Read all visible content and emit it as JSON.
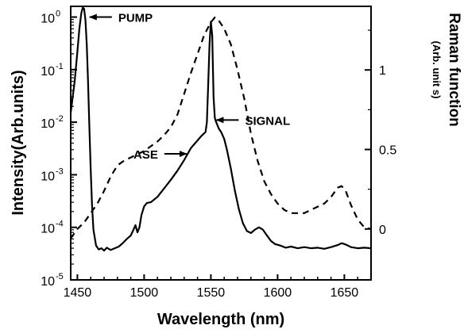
{
  "chart_data": {
    "type": "line",
    "xlabel": "Wavelength (nm)",
    "ylabel_left": "Intensity(Arb.units)",
    "ylabel_right": "Raman function",
    "ylabel_right_sub": "(Arb. unit s)",
    "xlim": [
      1445,
      1670
    ],
    "ylim_left": [
      1e-05,
      1.6
    ],
    "yscale_left": "log",
    "ylim_right": [
      -0.32,
      1.4
    ],
    "grid": false,
    "x_ticks": [
      1450,
      1500,
      1550,
      1600,
      1650
    ],
    "x_tick_labels": [
      "1450",
      "1500",
      "1550",
      "1600",
      "1650"
    ],
    "y_left_ticks": [
      1e-05,
      0.0001,
      0.001,
      0.01,
      0.1,
      1
    ],
    "y_left_tick_mantissa": "10",
    "y_left_tick_exponents": [
      "-5",
      "-4",
      "-3",
      "-2",
      "-1",
      "0"
    ],
    "y_right_ticks": [
      0,
      0.5,
      1
    ],
    "y_right_tick_labels": [
      "0",
      "0.5",
      "1"
    ],
    "series": [
      {
        "axis": "left",
        "style": "solid",
        "x": [
          1445,
          1448,
          1450,
          1451.5,
          1453,
          1454,
          1455,
          1456,
          1457,
          1458,
          1459,
          1460,
          1461,
          1462,
          1464,
          1466,
          1468,
          1470,
          1472,
          1475,
          1478,
          1481,
          1484,
          1487,
          1490,
          1492,
          1493.5,
          1495,
          1496.5,
          1498,
          1500,
          1502,
          1505,
          1510,
          1515,
          1520,
          1525,
          1530,
          1535,
          1540,
          1543,
          1546,
          1547,
          1548,
          1549,
          1550,
          1551,
          1552,
          1553,
          1554,
          1556,
          1558,
          1560,
          1562,
          1565,
          1568,
          1571,
          1574,
          1577,
          1580,
          1583,
          1586,
          1589,
          1592,
          1595,
          1598,
          1602,
          1606,
          1610,
          1615,
          1620,
          1625,
          1630,
          1635,
          1640,
          1645,
          1648,
          1651,
          1655,
          1660,
          1665,
          1670
        ],
        "y": [
          0.015,
          0.06,
          0.22,
          0.6,
          1.2,
          1.5,
          1.45,
          0.9,
          0.3,
          0.06,
          0.008,
          0.0012,
          0.00025,
          9e-05,
          4.5e-05,
          3.8e-05,
          4e-05,
          3.6e-05,
          4.1e-05,
          3.7e-05,
          4e-05,
          4.3e-05,
          5e-05,
          6e-05,
          7e-05,
          9e-05,
          0.00011,
          8e-05,
          0.0001,
          0.00017,
          0.00025,
          0.00029,
          0.0003,
          0.00038,
          0.00055,
          0.0008,
          0.0012,
          0.0019,
          0.0032,
          0.0045,
          0.0055,
          0.0065,
          0.01,
          0.05,
          0.3,
          0.82,
          0.45,
          0.03,
          0.012,
          0.01,
          0.0075,
          0.0063,
          0.0048,
          0.003,
          0.0013,
          0.0005,
          0.00022,
          0.00012,
          8.5e-05,
          7.8e-05,
          9e-05,
          0.0001,
          9e-05,
          7e-05,
          5.5e-05,
          4.8e-05,
          4.5e-05,
          4.1e-05,
          4.3e-05,
          4e-05,
          4.2e-05,
          4e-05,
          4.1e-05,
          3.9e-05,
          4.2e-05,
          4.6e-05,
          5e-05,
          4.7e-05,
          4.2e-05,
          4e-05,
          4.1e-05,
          4e-05
        ]
      },
      {
        "axis": "right",
        "style": "dashed",
        "x": [
          1445,
          1450,
          1455,
          1460,
          1465,
          1470,
          1475,
          1480,
          1485,
          1490,
          1495,
          1500,
          1505,
          1510,
          1515,
          1520,
          1525,
          1530,
          1535,
          1540,
          1545,
          1550,
          1553,
          1556,
          1560,
          1565,
          1570,
          1575,
          1580,
          1585,
          1590,
          1595,
          1600,
          1605,
          1610,
          1615,
          1620,
          1625,
          1630,
          1635,
          1640,
          1645,
          1648,
          1651,
          1655,
          1660,
          1665,
          1670
        ],
        "y": [
          -0.06,
          0.0,
          0.04,
          0.1,
          0.16,
          0.24,
          0.33,
          0.4,
          0.43,
          0.45,
          0.47,
          0.49,
          0.52,
          0.55,
          0.59,
          0.64,
          0.72,
          0.85,
          0.98,
          1.1,
          1.22,
          1.3,
          1.33,
          1.31,
          1.26,
          1.16,
          1.0,
          0.82,
          0.6,
          0.43,
          0.3,
          0.22,
          0.16,
          0.12,
          0.1,
          0.1,
          0.1,
          0.12,
          0.14,
          0.16,
          0.2,
          0.26,
          0.27,
          0.24,
          0.15,
          0.06,
          0.01,
          0.0
        ]
      }
    ],
    "annotations": [
      {
        "text": "PUMP",
        "target_x": 1458,
        "target_y": 1.0,
        "arrow": "left"
      },
      {
        "text": "SIGNAL",
        "target_x": 1553,
        "target_y": 0.011,
        "arrow": "left"
      },
      {
        "text": "ASE",
        "target_x": 1533,
        "target_y": 0.0025,
        "arrow": "right"
      }
    ]
  }
}
